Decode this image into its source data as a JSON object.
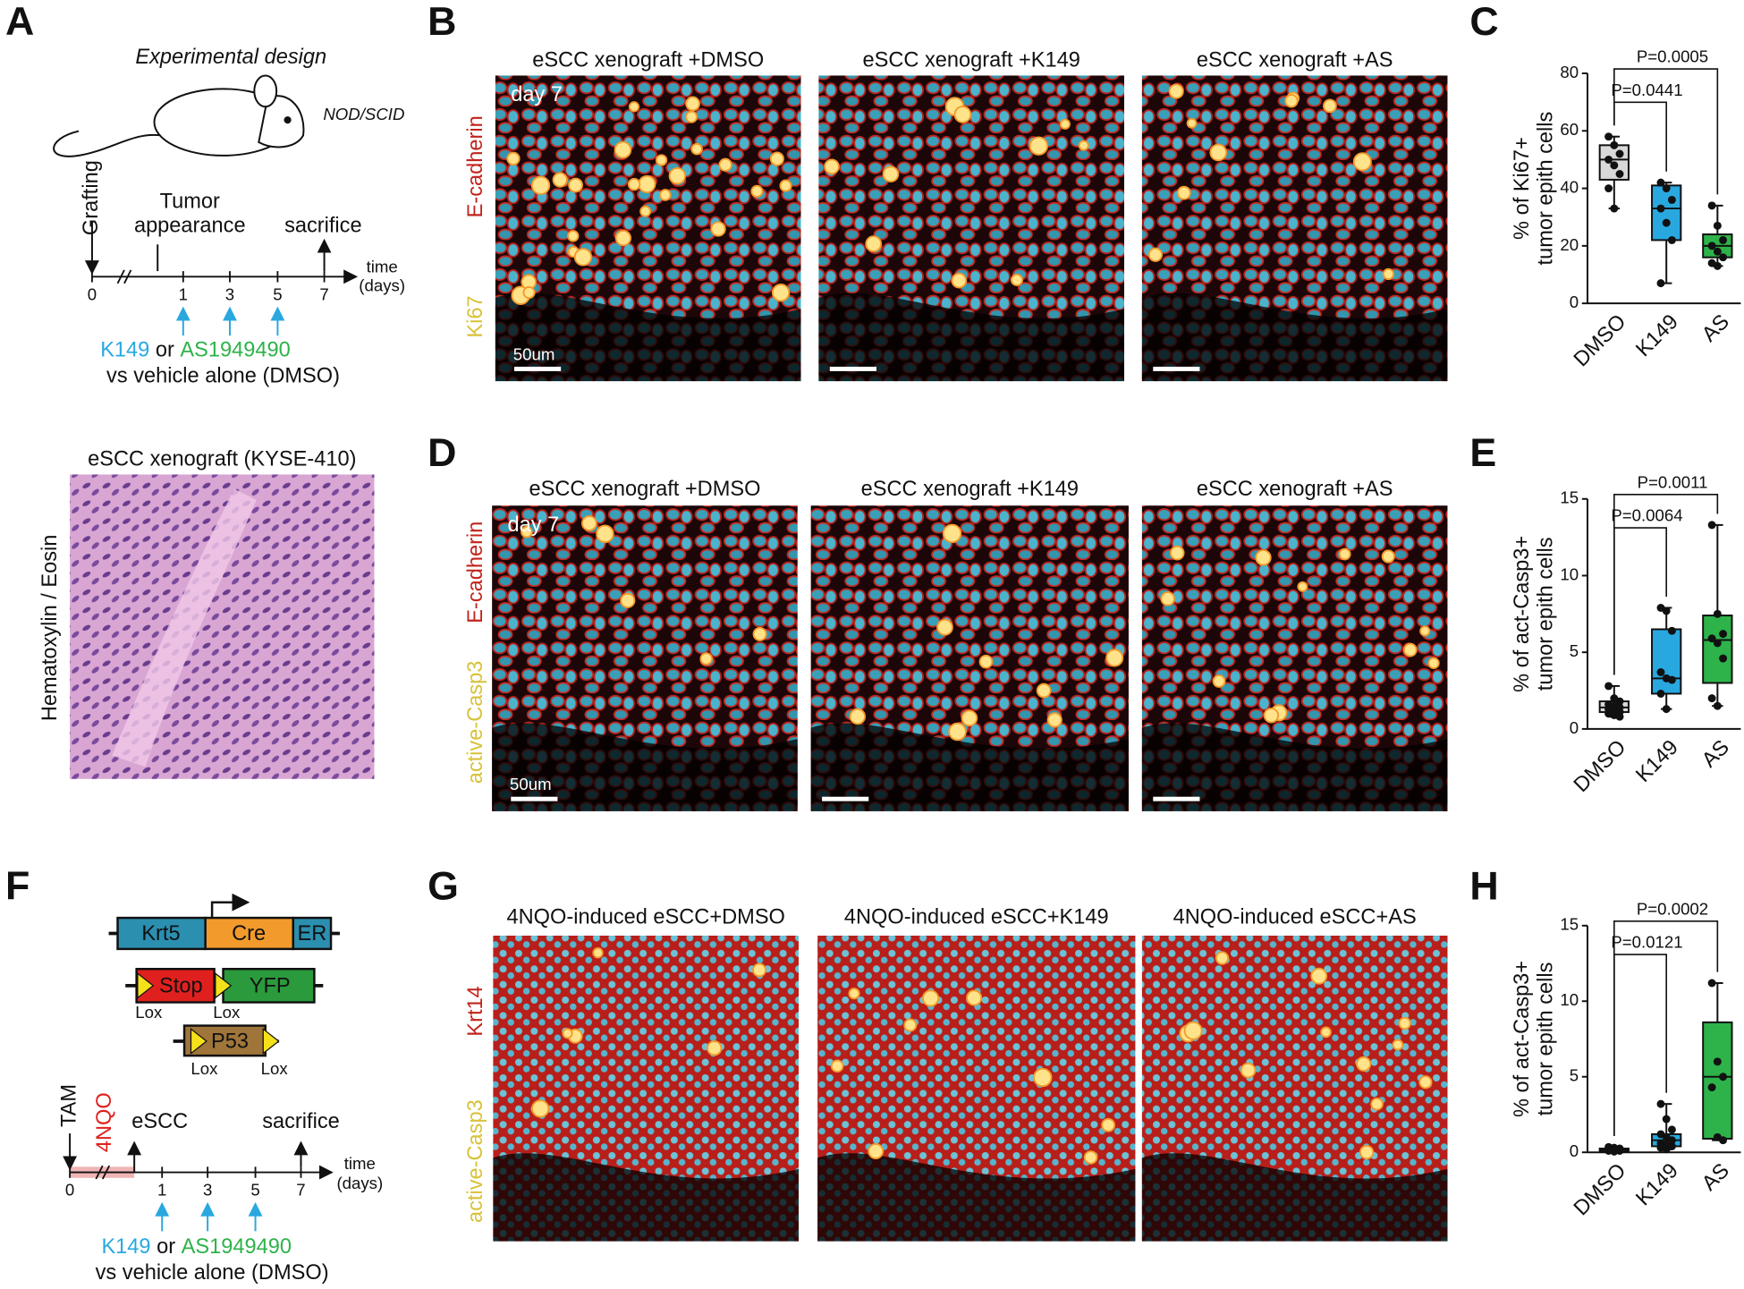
{
  "panel_a": {
    "label": "A",
    "title": "Experimental design",
    "strain": "NOD/SCID",
    "event_start": "Grafting",
    "event_tumor": [
      "Tumor",
      "appearance"
    ],
    "event_end": "sacrifice",
    "days": [
      0,
      1,
      3,
      5,
      7
    ],
    "time_unit": [
      "time",
      "(days)"
    ],
    "treatment": [
      "K149",
      "or",
      "AS1949490"
    ],
    "control": "vs vehicle alone (DMSO)",
    "he_title": "eSCC xenograft (KYSE-410)",
    "he_stain": "Hematoxylin / Eosin"
  },
  "panel_b": {
    "label": "B",
    "titles": [
      "eSCC xenograft +DMSO",
      "eSCC xenograft +K149",
      "eSCC xenograft +AS"
    ],
    "stains": [
      "E-cadherin",
      "Ki67"
    ],
    "timepoint": "day 7",
    "scale": "50um"
  },
  "panel_d": {
    "label": "D",
    "titles": [
      "eSCC xenograft +DMSO",
      "eSCC xenograft +K149",
      "eSCC xenograft +AS"
    ],
    "stains": [
      "E-cadherin",
      "active-Casp3"
    ],
    "timepoint": "day 7",
    "scale": "50um"
  },
  "panel_f": {
    "label": "F",
    "construct1": [
      "Krt5",
      "Cre",
      "ER"
    ],
    "construct2": [
      "Stop",
      "YFP"
    ],
    "construct3": "P53",
    "lox": [
      "Lox",
      "Lox",
      "Lox",
      "Lox"
    ],
    "event_start": "TAM",
    "carcinogen": "4NQO",
    "event_tumor": "eSCC",
    "event_end": "sacrifice",
    "days": [
      0,
      1,
      3,
      5,
      7
    ],
    "time_unit": [
      "time",
      "(days)"
    ],
    "treatment": [
      "K149",
      "or",
      "AS1949490"
    ],
    "control": "vs vehicle alone (DMSO)"
  },
  "panel_g": {
    "label": "G",
    "titles": [
      "4NQO-induced eSCC+DMSO",
      "4NQO-induced eSCC+K149",
      "4NQO-induced eSCC+AS"
    ],
    "stains": [
      "Krt14",
      "active-Casp3"
    ]
  },
  "chart_data": [
    {
      "type": "box",
      "label": "C",
      "ylabel": [
        "% of Ki67+",
        "tumor epith cells"
      ],
      "categories": [
        "DMSO",
        "K149",
        "AS"
      ],
      "colors": [
        "#d9d9d9",
        "#29a8e0",
        "#2db34a"
      ],
      "ylim": [
        0,
        80
      ],
      "yticks": [
        0,
        20,
        40,
        60,
        80
      ],
      "annotations": [
        "P=0.0441",
        "P=0.0005"
      ],
      "boxes": [
        {
          "min": 33,
          "q1": 43,
          "median": 50,
          "q3": 55,
          "max": 58,
          "points": [
            58,
            55,
            52,
            50,
            48,
            45,
            40,
            33
          ]
        },
        {
          "min": 7,
          "q1": 22,
          "median": 33,
          "q3": 41,
          "max": 42,
          "points": [
            42,
            40,
            36,
            33,
            28,
            22,
            7
          ]
        },
        {
          "min": 13,
          "q1": 16,
          "median": 20,
          "q3": 24,
          "max": 34,
          "points": [
            34,
            27,
            22,
            20,
            18,
            16,
            14,
            13
          ]
        }
      ]
    },
    {
      "type": "box",
      "label": "E",
      "ylabel": [
        "% of act-Casp3+",
        "tumor epith cells"
      ],
      "categories": [
        "DMSO",
        "K149",
        "AS"
      ],
      "colors": [
        "#d9d9d9",
        "#29a8e0",
        "#2db34a"
      ],
      "ylim": [
        0,
        15
      ],
      "yticks": [
        0,
        5,
        10,
        15
      ],
      "annotations": [
        "P=0.0064",
        "P=0.0011"
      ],
      "boxes": [
        {
          "min": 0.8,
          "q1": 1.1,
          "median": 1.4,
          "q3": 1.8,
          "max": 2.8,
          "points": [
            2.8,
            2.0,
            1.8,
            1.6,
            1.5,
            1.4,
            1.3,
            1.2,
            1.1,
            1.0,
            0.9,
            0.8
          ]
        },
        {
          "min": 1.3,
          "q1": 2.3,
          "median": 3.3,
          "q3": 6.5,
          "max": 7.9,
          "points": [
            7.9,
            7.7,
            6.4,
            3.7,
            3.3,
            3.2,
            2.3,
            1.3
          ]
        },
        {
          "min": 1.5,
          "q1": 3.0,
          "median": 5.8,
          "q3": 7.4,
          "max": 13.3,
          "points": [
            13.3,
            7.5,
            6.2,
            5.9,
            5.6,
            4.6,
            2.0,
            1.5
          ]
        }
      ]
    },
    {
      "type": "box",
      "label": "H",
      "ylabel": [
        "% of act-Casp3+",
        "tumor epith cells"
      ],
      "categories": [
        "DMSO",
        "K149",
        "AS"
      ],
      "colors": [
        "#d9d9d9",
        "#29a8e0",
        "#2db34a"
      ],
      "ylim": [
        0,
        15
      ],
      "yticks": [
        0,
        5,
        10,
        15
      ],
      "annotations": [
        "P=0.0121",
        "P=0.0002"
      ],
      "boxes": [
        {
          "min": 0.05,
          "q1": 0.1,
          "median": 0.15,
          "q3": 0.25,
          "max": 0.35,
          "points": [
            0.35,
            0.3,
            0.25,
            0.2,
            0.15,
            0.1,
            0.1,
            0.05
          ]
        },
        {
          "min": 0.2,
          "q1": 0.4,
          "median": 0.8,
          "q3": 1.2,
          "max": 3.2,
          "points": [
            3.2,
            2.2,
            1.5,
            1.2,
            1.0,
            0.8,
            0.6,
            0.5,
            0.4,
            0.3,
            0.2
          ]
        },
        {
          "min": 0.8,
          "q1": 0.9,
          "median": 5.0,
          "q3": 8.6,
          "max": 11.2,
          "points": [
            11.2,
            6.0,
            5.0,
            4.3,
            1.0,
            0.8
          ]
        }
      ]
    }
  ]
}
